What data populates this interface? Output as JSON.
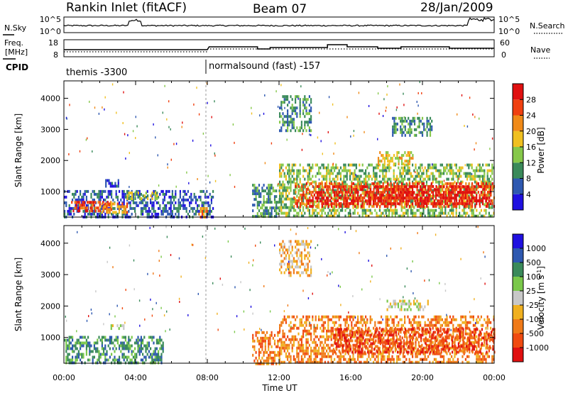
{
  "header": {
    "station": "Rankin Inlet (fitACF)",
    "beam": "Beam 07",
    "date": "28/Jan/2009"
  },
  "noise_panel": {
    "left_label": "N.Sky",
    "right_label": "N.Search",
    "left_ticks": [
      "10^5",
      "10^0"
    ],
    "right_ticks": [
      "10^5",
      "10^0"
    ]
  },
  "freq_panel": {
    "left_label_line1": "Freq.",
    "left_label_line2": "[MHz]",
    "right_label": "Nave",
    "left_ticks": [
      "18",
      "8"
    ],
    "right_ticks": [
      "60",
      "0"
    ]
  },
  "cpid_panel": {
    "label": "CPID",
    "modes": [
      {
        "text": "themis -3300",
        "start_hour": 0
      },
      {
        "text": "normalsound (fast) -157",
        "start_hour": 8
      }
    ]
  },
  "x_axis": {
    "label": "Time UT",
    "ticks": [
      "00:00",
      "04:00",
      "08:00",
      "12:00",
      "16:00",
      "20:00",
      "00:00"
    ],
    "tick_hours": [
      0,
      4,
      8,
      12,
      16,
      20,
      24
    ]
  },
  "colors": {
    "power": [
      "#1f10e0",
      "#2e58b0",
      "#3a8a5a",
      "#86c84a",
      "#f0c020",
      "#f08a18",
      "#f04010",
      "#e01010"
    ],
    "velocity": [
      "#e01010",
      "#f04a10",
      "#f07a18",
      "#f0b020",
      "#c8c8c8",
      "#7ac84a",
      "#3a8a5a",
      "#2e58b0",
      "#1f10e0"
    ]
  },
  "chart_data": [
    {
      "type": "heatmap",
      "quantity": "power",
      "ylabel": "Slant Range [km]",
      "yticks": [
        1000,
        2000,
        3000,
        4000
      ],
      "ylim": [
        180,
        4560
      ],
      "xlim": [
        0,
        24
      ],
      "colorbar_label": "Power [dB]",
      "colorbar_ticks": [
        "4",
        "8",
        "12",
        "16",
        "20",
        "24",
        "28"
      ],
      "regions": [
        {
          "h": [
            0.0,
            8.3
          ],
          "r": [
            200,
            1050
          ],
          "level": 1
        },
        {
          "h": [
            0.4,
            2.6
          ],
          "r": [
            350,
            700
          ],
          "level": 6
        },
        {
          "h": [
            2.0,
            3.5
          ],
          "r": [
            300,
            650
          ],
          "level": 5
        },
        {
          "h": [
            2.3,
            3.0
          ],
          "r": [
            1150,
            1400
          ],
          "level": 1
        },
        {
          "h": [
            3.5,
            5.2
          ],
          "r": [
            800,
            1000
          ],
          "level": 3
        },
        {
          "h": [
            7.5,
            8.0
          ],
          "r": [
            200,
            500
          ],
          "level": 5
        },
        {
          "h": [
            10.5,
            12.0
          ],
          "r": [
            200,
            1250
          ],
          "level": 2
        },
        {
          "h": [
            12.0,
            24.0
          ],
          "r": [
            200,
            1900
          ],
          "level": 3
        },
        {
          "h": [
            12.8,
            24.0
          ],
          "r": [
            500,
            1300
          ],
          "level": 6
        },
        {
          "h": [
            14.0,
            23.8
          ],
          "r": [
            600,
            1200
          ],
          "level": 7
        },
        {
          "h": [
            17.5,
            19.5
          ],
          "r": [
            1900,
            2300
          ],
          "level": 4
        },
        {
          "h": [
            18.3,
            20.5
          ],
          "r": [
            2800,
            3400
          ],
          "level": 2
        },
        {
          "h": [
            12.0,
            13.8
          ],
          "r": [
            3000,
            4100
          ],
          "level": 2
        }
      ]
    },
    {
      "type": "heatmap",
      "quantity": "velocity",
      "ylabel": "Slant Range [km]",
      "yticks": [
        1000,
        2000,
        3000,
        4000
      ],
      "ylim": [
        180,
        4560
      ],
      "xlim": [
        0,
        24
      ],
      "colorbar_label": "Velocity [m s-1]",
      "colorbar_ticks": [
        "-1000",
        "-500",
        "-100",
        "-25",
        "25",
        "100",
        "500",
        "1000"
      ],
      "regions": [
        {
          "h": [
            0.0,
            5.5
          ],
          "r": [
            200,
            1050
          ],
          "level": 6
        },
        {
          "h": [
            2.6,
            3.3
          ],
          "r": [
            1280,
            1420
          ],
          "level": 4
        },
        {
          "h": [
            10.5,
            12.0
          ],
          "r": [
            200,
            1200
          ],
          "level": 2
        },
        {
          "h": [
            12.0,
            24.0
          ],
          "r": [
            200,
            1700
          ],
          "level": 2
        },
        {
          "h": [
            15.0,
            24.0
          ],
          "r": [
            500,
            1300
          ],
          "level": 1
        },
        {
          "h": [
            18.0,
            20.3
          ],
          "r": [
            1900,
            2200
          ],
          "level": 4
        },
        {
          "h": [
            12.0,
            13.8
          ],
          "r": [
            3000,
            4100
          ],
          "level": 3
        }
      ]
    }
  ]
}
